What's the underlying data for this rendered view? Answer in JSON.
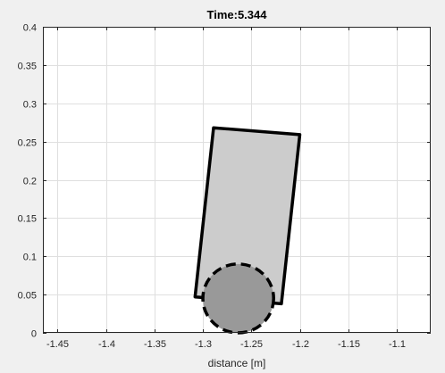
{
  "chart_data": {
    "type": "scatter",
    "title": "Time:5.344",
    "xlabel": "distance [m]",
    "ylabel": "",
    "xlim": [
      -1.465,
      -1.065
    ],
    "ylim": [
      0,
      0.4
    ],
    "x_ticks": [
      -1.45,
      -1.4,
      -1.35,
      -1.3,
      -1.25,
      -1.2,
      -1.15,
      -1.1
    ],
    "x_tick_labels": [
      "-1.45",
      "-1.4",
      "-1.35",
      "-1.3",
      "-1.25",
      "-1.2",
      "-1.15",
      "-1.1"
    ],
    "y_ticks": [
      0,
      0.05,
      0.1,
      0.15,
      0.2,
      0.25,
      0.3,
      0.35,
      0.4
    ],
    "y_tick_labels": [
      "0",
      "0.05",
      "0.1",
      "0.15",
      "0.2",
      "0.25",
      "0.3",
      "0.35",
      "0.4"
    ],
    "grid": true,
    "shapes": {
      "body_polygon": [
        [
          -1.289,
          0.268
        ],
        [
          -1.2,
          0.259
        ],
        [
          -1.219,
          0.038
        ],
        [
          -1.308,
          0.047
        ]
      ],
      "wheel": {
        "cx": -1.2635,
        "cy": 0.045,
        "rx": 0.0365,
        "ry": 0.045
      }
    }
  },
  "colors": {
    "figure_background": "#f0f0f0",
    "axes_background": "#ffffff",
    "grid": "#dfdfdf",
    "axis": "#262626",
    "body_fill": "#cccccc",
    "wheel_fill": "#999999",
    "outline": "#000000"
  }
}
